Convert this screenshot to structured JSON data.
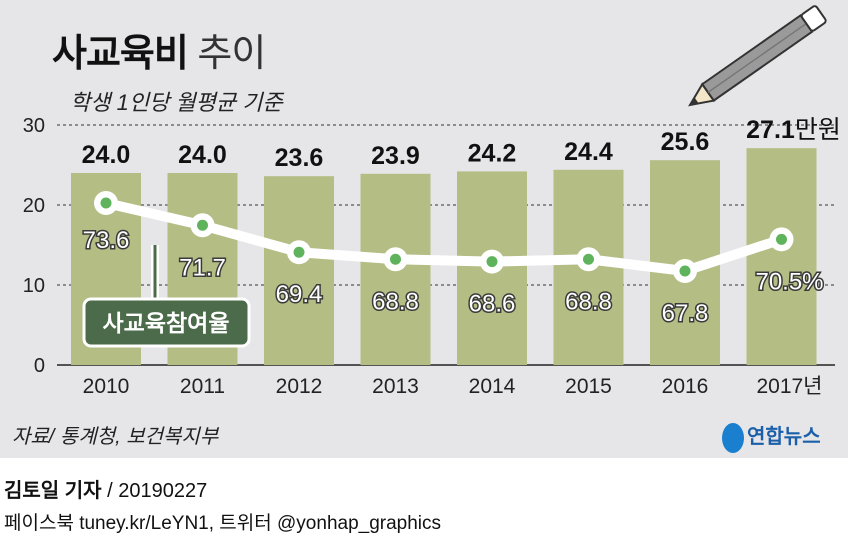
{
  "title_bold": "사교육비",
  "title_light": "추이",
  "subtitle": "학생 1인당 월평균 기준",
  "source": "자료/ 통계청, 보건복지부",
  "logo": "연합뉴스",
  "byline_name": "김토일 기자",
  "byline_date": "/ 20190227",
  "social": "페이스북 tuney.kr/LeYN1, 트위터 @yonhap_graphics",
  "chart_data": {
    "type": "bar",
    "title": "사교육비 추이",
    "subtitle": "학생 1인당 월평균 기준",
    "categories": [
      "2010",
      "2011",
      "2012",
      "2013",
      "2014",
      "2015",
      "2016",
      "2017년"
    ],
    "ylim": [
      0,
      30
    ],
    "yticks": [
      "0",
      "10",
      "20",
      "30"
    ],
    "bar_series": {
      "name": "사교육비",
      "unit": "만원",
      "values": [
        24.0,
        24.0,
        23.6,
        23.9,
        24.2,
        24.4,
        25.6,
        27.1
      ],
      "labels": [
        "24.0",
        "24.0",
        "23.6",
        "23.9",
        "24.2",
        "24.4",
        "25.6",
        "27.1만원"
      ]
    },
    "line_series": {
      "name": "사교육참여율",
      "unit": "%",
      "values": [
        73.6,
        71.7,
        69.4,
        68.8,
        68.6,
        68.8,
        67.8,
        70.5
      ],
      "labels": [
        "73.6",
        "71.7",
        "69.4",
        "68.8",
        "68.6",
        "68.8",
        "67.8",
        "70.5%"
      ]
    },
    "grid": "dashed horizontal",
    "colors": {
      "bar": "#b3bd84",
      "line": "#ffffff",
      "dot": "#5fb35c",
      "legend": "#4b6b4a"
    }
  }
}
